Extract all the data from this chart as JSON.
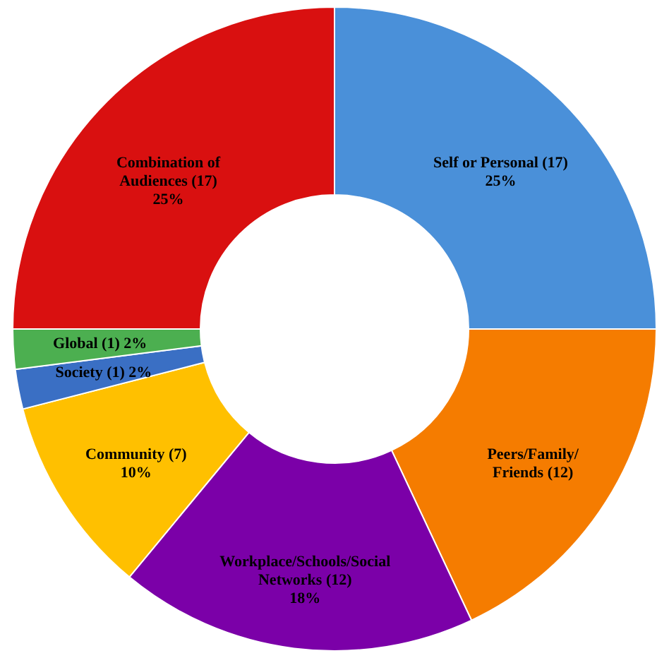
{
  "chart_data": {
    "type": "donut",
    "categories": [
      "Self or Personal (17)",
      "Peers/Family/\nFriends (12)",
      "Workplace/Schools/Social\nNetworks (12)",
      "Community (7)",
      "Society (1)",
      "Global (1)",
      "Combination of\nAudiences (17)"
    ],
    "values": [
      25,
      18,
      18,
      10,
      2,
      2,
      25
    ],
    "value_labels": [
      "25%",
      null,
      "18%",
      "10%",
      "2%",
      "2%",
      "25%"
    ],
    "colors": [
      "#4a90d9",
      "#f57c00",
      "#7b00a8",
      "#ffc000",
      "#3a6fc4",
      "#4caf50",
      "#d91010"
    ]
  }
}
